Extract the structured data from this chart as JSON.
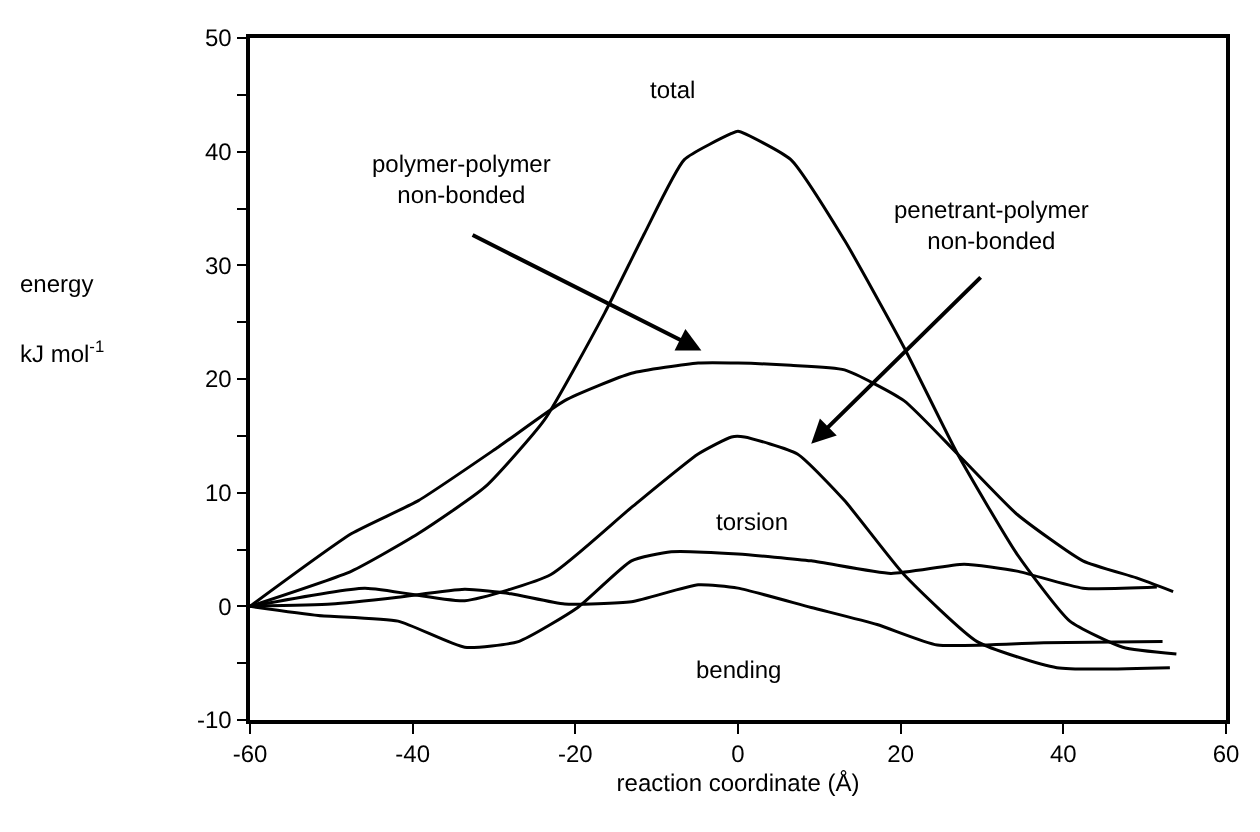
{
  "chart_data": {
    "type": "line",
    "xlabel": "reaction coordinate (Å)",
    "ylabel": "energy\nkJ mol$^{-1}$",
    "xlim": [
      -60,
      60
    ],
    "xticks": [
      -60,
      -40,
      -20,
      0,
      20,
      40,
      60
    ],
    "ylim": [
      -10,
      50
    ],
    "yticks": [
      -10,
      {
        "value": -5,
        "label": null
      },
      0,
      {
        "value": 5,
        "label": null
      },
      10,
      {
        "value": 15,
        "label": null
      },
      20,
      {
        "value": 25,
        "label": null
      },
      30,
      {
        "value": 35,
        "label": null
      },
      40,
      {
        "value": 45,
        "label": null
      },
      50
    ],
    "marker": "none",
    "line_style": "solid",
    "series": [
      {
        "color": "#000000",
        "x": [
          -60,
          -47.5,
          -39.3,
          -31.1,
          -23.8,
          -16.4,
          -11.5,
          -6.6,
          -0.8,
          0,
          6.5,
          13.1,
          20.4,
          27,
          34.3,
          40.8,
          47.3,
          53.9
        ],
        "values": [
          0,
          3.1,
          6.4,
          10.5,
          16.4,
          25.8,
          32.8,
          39.3,
          41.6,
          41.8,
          39.3,
          32.2,
          22.8,
          13.4,
          4.6,
          -1.3,
          -3.6,
          -4.2
        ]
      },
      {
        "color": "#000000",
        "x": [
          -60,
          -47.5,
          -39.3,
          -29.5,
          -21.3,
          -13.1,
          -4.9,
          0,
          6.5,
          13.1,
          20.4,
          27,
          34.3,
          42.4,
          49,
          53.5
        ],
        "values": [
          0,
          6.4,
          9.3,
          14,
          18.1,
          20.5,
          21.4,
          21.4,
          21.2,
          20.8,
          18.1,
          13.4,
          8.1,
          4,
          2.5,
          1.3
        ]
      },
      {
        "color": "#000000",
        "x": [
          -60,
          -45.9,
          -33.6,
          -23,
          -13.1,
          -4.9,
          -0.8,
          0.8,
          7.3,
          13.1,
          20.4,
          29.4,
          39.2,
          53.1
        ],
        "values": [
          0,
          1.6,
          0.5,
          2.8,
          8.7,
          13.4,
          14.9,
          14.9,
          13.4,
          9.3,
          2.8,
          -3.1,
          -5.4,
          -5.4
        ]
      },
      {
        "color": "#000000",
        "x": [
          -60,
          -51.6,
          -41.8,
          -33.6,
          -27,
          -19.7,
          -13.1,
          -8.2,
          0,
          9,
          18.8,
          27.8,
          34.3,
          42.4,
          51.5
        ],
        "values": [
          0,
          -0.8,
          -1.3,
          -3.6,
          -3.1,
          -0.1,
          4,
          4.8,
          4.6,
          4,
          2.9,
          3.7,
          3.1,
          1.6,
          1.7
        ]
      },
      {
        "color": "#000000",
        "x": [
          -60,
          -50,
          -41.8,
          -33.6,
          -27.9,
          -21.3,
          -13.1,
          -4.9,
          0,
          9,
          17.1,
          24.5,
          37.6,
          52.2
        ],
        "values": [
          0,
          0.2,
          0.8,
          1.5,
          1.1,
          0.2,
          0.4,
          1.9,
          1.6,
          -0.1,
          -1.6,
          -3.4,
          -3.2,
          -3.1
        ]
      }
    ],
    "annotations": [
      "total",
      "polymer-polymer\nnon-bonded",
      "penetrant-polymer\nnon-bonded",
      "torsion",
      "bending"
    ]
  }
}
